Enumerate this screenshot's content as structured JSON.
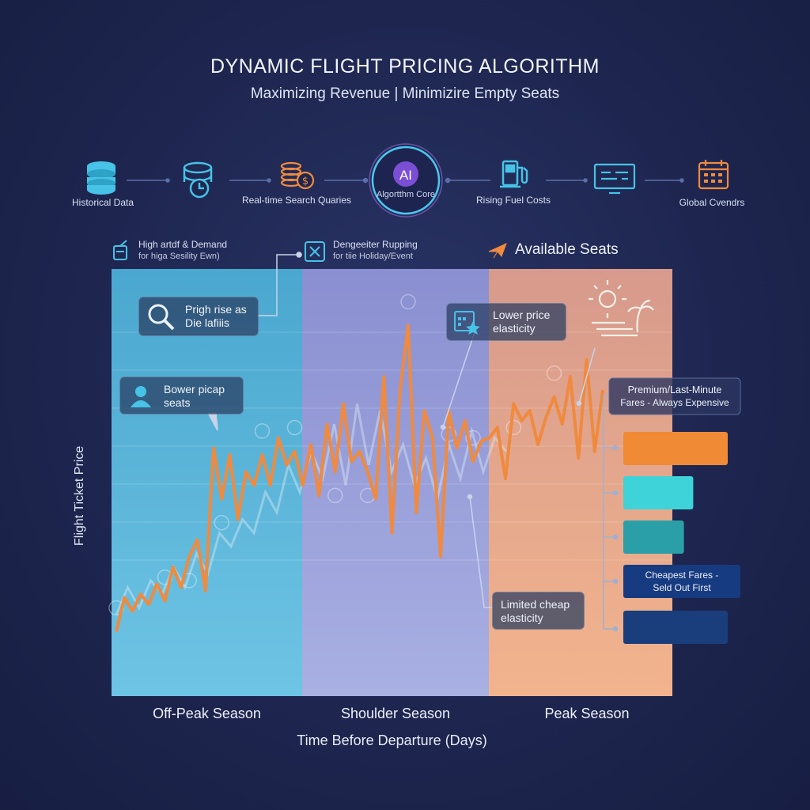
{
  "header": {
    "title": "DYNAMIC FLIGHT PRICING ALGORITHM",
    "subtitle": "Maximizing Revenue | Minimizire Empty Seats"
  },
  "pipeline": {
    "nodes": [
      {
        "label": "Historical Data",
        "icon": "database-icon"
      },
      {
        "label": "",
        "icon": "database-clock-icon"
      },
      {
        "label": "Real-time Search Quaries",
        "icon": "coins-icon"
      },
      {
        "label": "AI",
        "sublabel": "Algortthm Core",
        "icon": "ai-core-icon"
      },
      {
        "label": "Rising Fuel Costs",
        "icon": "fuel-pump-icon"
      },
      {
        "label": "",
        "icon": "monitor-icon"
      },
      {
        "label": "Global Cvendrs",
        "icon": "calendar-icon"
      }
    ]
  },
  "legend": {
    "item1": {
      "title": "High artdf & Demand",
      "sub": "for higa Sesility Ewn)"
    },
    "item2": {
      "title": "Dengeeiter Rupping",
      "sub": "for tiie Holiday/Event"
    },
    "available_seats": "Available Seats"
  },
  "callouts": {
    "c1": {
      "line1": "Prigh rise as",
      "line2": "Die lafiiis"
    },
    "c2": {
      "line1": "Bower picap",
      "line2": "seats"
    },
    "c3": {
      "line1": "Lower price",
      "line2": "elasticity"
    },
    "c4": {
      "line1": "Limited cheap",
      "line2": "elasticity"
    }
  },
  "side_panel": {
    "premium": {
      "line1": "Premium/Last-Minute",
      "line2": "Fares - Always Expensive"
    },
    "cheapest": {
      "line1": "Cheapest Fares -",
      "line2": "Seld Out First"
    },
    "bar_colors": [
      "#f08a34",
      "#3ed3d8",
      "#2b9fa8",
      "#173b80",
      "#1a3d7c"
    ],
    "bar_lengths": [
      1.0,
      0.67,
      0.58,
      1.0,
      1.0
    ]
  },
  "axes": {
    "xlabel": "Time Before Departure (Days)",
    "ylabel": "Flight Ticket Price",
    "seasons": [
      "Off-Peak Season",
      "Shoulder Season",
      "Peak Season"
    ]
  },
  "colors": {
    "offpeak": "#5bb7d9",
    "shoulder": "#8d97d6",
    "peak": "#e7a07d",
    "price_line": "#f08a3e",
    "ghost_line": "#cfe3f2",
    "background": "#1e2650"
  },
  "chart_data": {
    "type": "line",
    "series": [
      {
        "values": [
          5,
          15,
          11,
          16,
          13,
          19,
          14,
          24,
          18,
          27,
          32,
          17,
          59,
          44,
          57,
          38,
          52,
          48,
          57,
          48,
          62,
          54,
          58,
          48,
          60,
          45,
          66,
          52,
          72,
          55,
          58,
          52,
          44,
          80,
          34,
          76,
          95,
          40,
          70,
          62,
          27,
          70,
          59,
          67,
          55,
          61,
          62,
          65,
          50,
          72,
          67,
          70,
          60,
          68,
          74,
          66,
          80,
          56,
          85,
          58,
          76
        ]
      },
      {
        "values": [
          10,
          18,
          12,
          20,
          16,
          24,
          18,
          28,
          22,
          34,
          30,
          38,
          34,
          46,
          40,
          54,
          46,
          58,
          50,
          66,
          48,
          72,
          54,
          70,
          52,
          60,
          48,
          56,
          44,
          60,
          50,
          64,
          52,
          62,
          58
        ]
      }
    ],
    "ylim": [
      0,
      100
    ]
  }
}
